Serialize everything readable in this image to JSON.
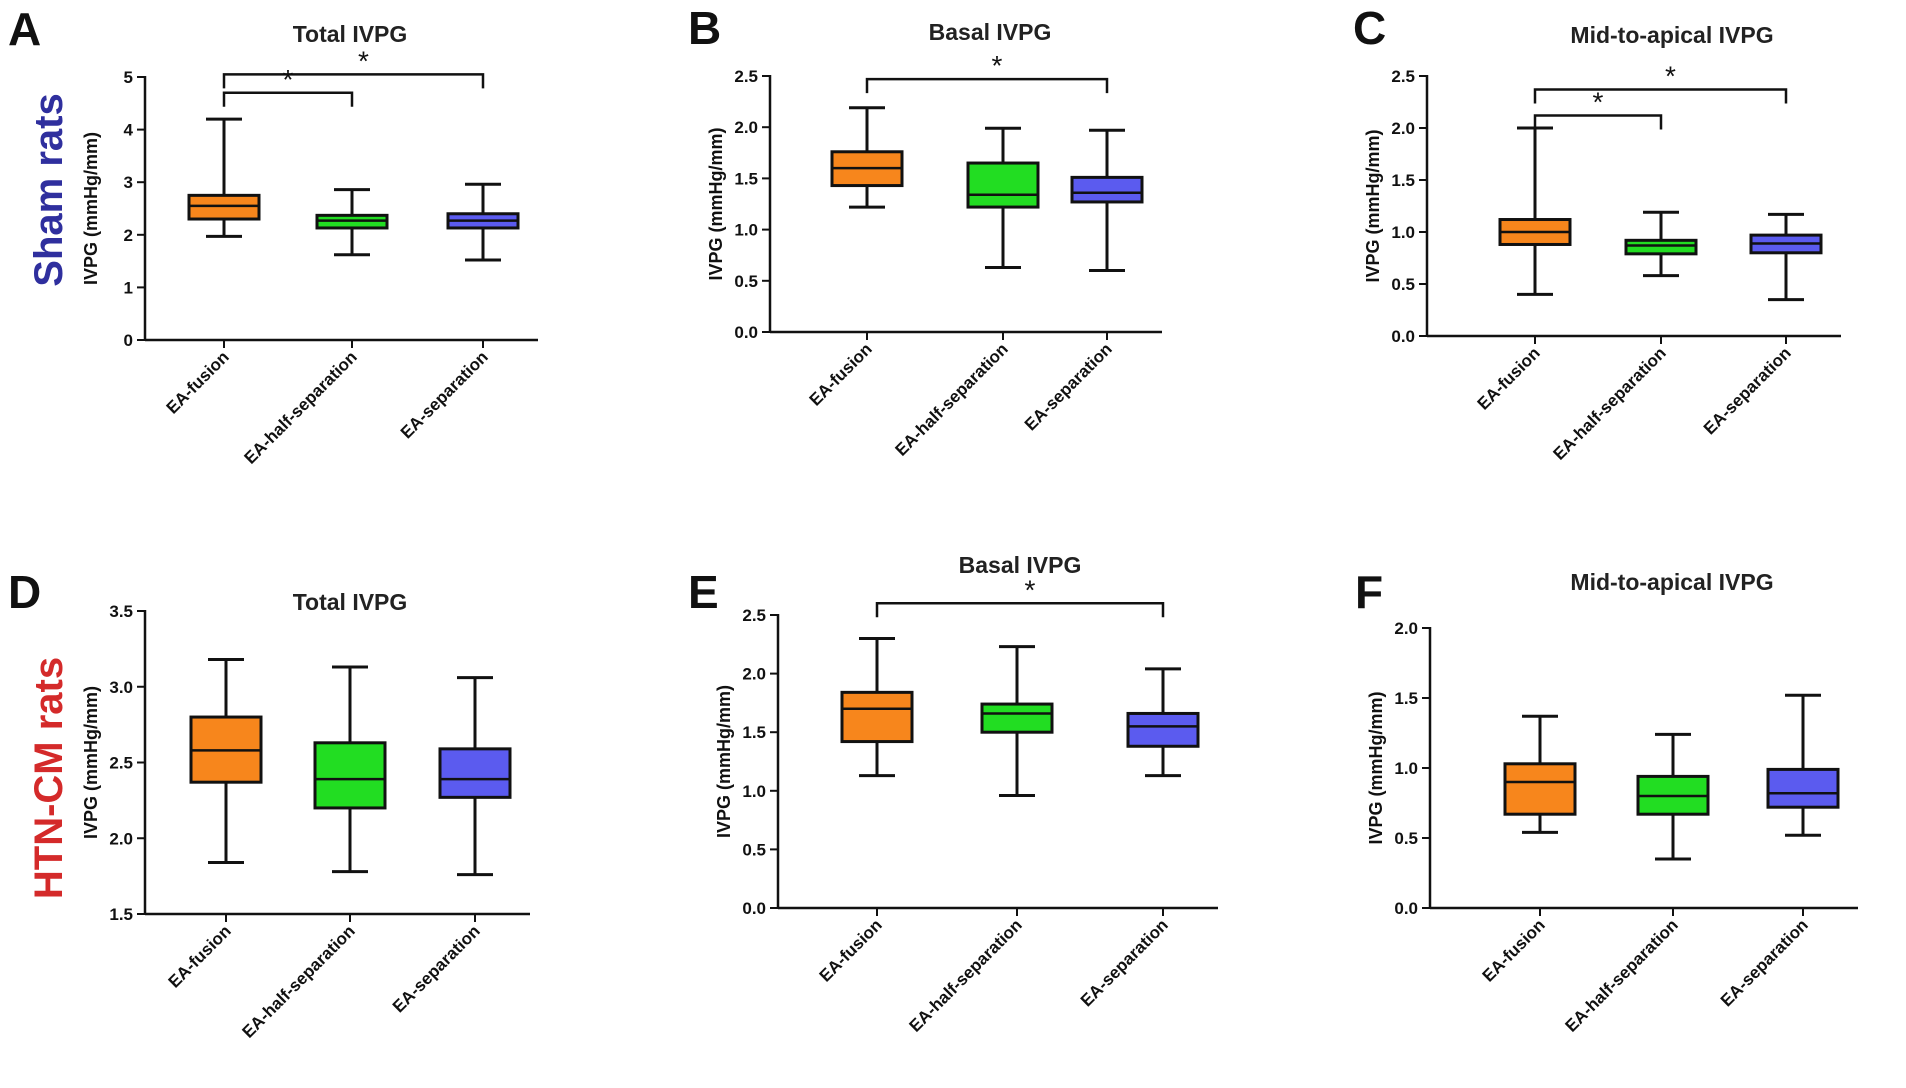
{
  "row_labels": [
    {
      "text": "Sham rats",
      "color": "#2f2f9e"
    },
    {
      "text": "HTN-CM rats",
      "color": "#d42a2a"
    }
  ],
  "group_colors": [
    "#f7861c",
    "#22dd22",
    "#5b5bef"
  ],
  "chart_data": [
    {
      "type": "box",
      "panel": "A",
      "title": "Total IVPG",
      "ylabel": "IVPG (mmHg/mm)",
      "categories": [
        "EA-fusion",
        "EA-half-separation",
        "EA-separation"
      ],
      "ylim": [
        0,
        5
      ],
      "yticks": [
        "0",
        "1",
        "2",
        "3",
        "4",
        "5"
      ],
      "boxes": [
        {
          "min": 1.97,
          "q1": 2.3,
          "median": 2.55,
          "q3": 2.75,
          "max": 4.2
        },
        {
          "min": 1.62,
          "q1": 2.13,
          "median": 2.27,
          "q3": 2.37,
          "max": 2.86
        },
        {
          "min": 1.52,
          "q1": 2.13,
          "median": 2.27,
          "q3": 2.4,
          "max": 2.96
        }
      ],
      "significance": [
        {
          "from": 0,
          "to": 1,
          "level": 4.7,
          "label": "*"
        },
        {
          "from": 0,
          "to": 2,
          "level": 5.05,
          "label": "*"
        }
      ]
    },
    {
      "type": "box",
      "panel": "B",
      "title": "Basal IVPG",
      "ylabel": "IVPG (mmHg/mm)",
      "categories": [
        "EA-fusion",
        "EA-half-separation",
        "EA-separation"
      ],
      "ylim": [
        0,
        2.5
      ],
      "yticks": [
        "0.0",
        "0.5",
        "1.0",
        "1.5",
        "2.0",
        "2.5"
      ],
      "boxes": [
        {
          "min": 1.22,
          "q1": 1.43,
          "median": 1.6,
          "q3": 1.76,
          "max": 2.19
        },
        {
          "min": 0.63,
          "q1": 1.22,
          "median": 1.34,
          "q3": 1.65,
          "max": 1.99
        },
        {
          "min": 0.6,
          "q1": 1.27,
          "median": 1.36,
          "q3": 1.51,
          "max": 1.97
        }
      ],
      "significance": [
        {
          "from": 0,
          "to": 2,
          "level": 2.47,
          "label": "*"
        }
      ]
    },
    {
      "type": "box",
      "panel": "C",
      "title": "Mid-to-apical IVPG",
      "ylabel": "IVPG (mmHg/mm)",
      "categories": [
        "EA-fusion",
        "EA-half-separation",
        "EA-separation"
      ],
      "ylim": [
        0,
        2.5
      ],
      "yticks": [
        "0.0",
        "0.5",
        "1.0",
        "1.5",
        "2.0",
        "2.5"
      ],
      "boxes": [
        {
          "min": 0.4,
          "q1": 0.88,
          "median": 1.0,
          "q3": 1.12,
          "max": 2.0
        },
        {
          "min": 0.58,
          "q1": 0.79,
          "median": 0.87,
          "q3": 0.92,
          "max": 1.19
        },
        {
          "min": 0.35,
          "q1": 0.8,
          "median": 0.89,
          "q3": 0.97,
          "max": 1.17
        }
      ],
      "significance": [
        {
          "from": 0,
          "to": 1,
          "level": 2.12,
          "label": "*"
        },
        {
          "from": 0,
          "to": 2,
          "level": 2.37,
          "label": "*"
        }
      ]
    },
    {
      "type": "box",
      "panel": "D",
      "title": "Total IVPG",
      "ylabel": "IVPG (mmHg/mm)",
      "categories": [
        "EA-fusion",
        "EA-half-separation",
        "EA-separation"
      ],
      "ylim": [
        1.5,
        3.5
      ],
      "yticks": [
        "1.5",
        "2.0",
        "2.5",
        "3.0",
        "3.5"
      ],
      "boxes": [
        {
          "min": 1.84,
          "q1": 2.37,
          "median": 2.58,
          "q3": 2.8,
          "max": 3.18
        },
        {
          "min": 1.78,
          "q1": 2.2,
          "median": 2.39,
          "q3": 2.63,
          "max": 3.13
        },
        {
          "min": 1.76,
          "q1": 2.27,
          "median": 2.39,
          "q3": 2.59,
          "max": 3.06
        }
      ],
      "significance": []
    },
    {
      "type": "box",
      "panel": "E",
      "title": "Basal IVPG",
      "ylabel": "IVPG (mmHg/mm)",
      "categories": [
        "EA-fusion",
        "EA-half-separation",
        "EA-separation"
      ],
      "ylim": [
        0,
        2.5
      ],
      "yticks": [
        "0.0",
        "0.5",
        "1.0",
        "1.5",
        "2.0",
        "2.5"
      ],
      "boxes": [
        {
          "min": 1.13,
          "q1": 1.42,
          "median": 1.7,
          "q3": 1.84,
          "max": 2.3
        },
        {
          "min": 0.96,
          "q1": 1.5,
          "median": 1.66,
          "q3": 1.74,
          "max": 2.23
        },
        {
          "min": 1.13,
          "q1": 1.38,
          "median": 1.55,
          "q3": 1.66,
          "max": 2.04
        }
      ],
      "significance": [
        {
          "from": 0,
          "to": 2,
          "level": 2.6,
          "label": "*"
        }
      ]
    },
    {
      "type": "box",
      "panel": "F",
      "title": "Mid-to-apical IVPG",
      "ylabel": "IVPG (mmHg/mm)",
      "categories": [
        "EA-fusion",
        "EA-half-separation",
        "EA-separation"
      ],
      "ylim": [
        0,
        2.0
      ],
      "yticks": [
        "0.0",
        "0.5",
        "1.0",
        "1.5",
        "2.0"
      ],
      "boxes": [
        {
          "min": 0.54,
          "q1": 0.67,
          "median": 0.9,
          "q3": 1.03,
          "max": 1.37
        },
        {
          "min": 0.35,
          "q1": 0.67,
          "median": 0.8,
          "q3": 0.94,
          "max": 1.24
        },
        {
          "min": 0.52,
          "q1": 0.72,
          "median": 0.82,
          "q3": 0.99,
          "max": 1.52
        }
      ],
      "significance": []
    }
  ]
}
